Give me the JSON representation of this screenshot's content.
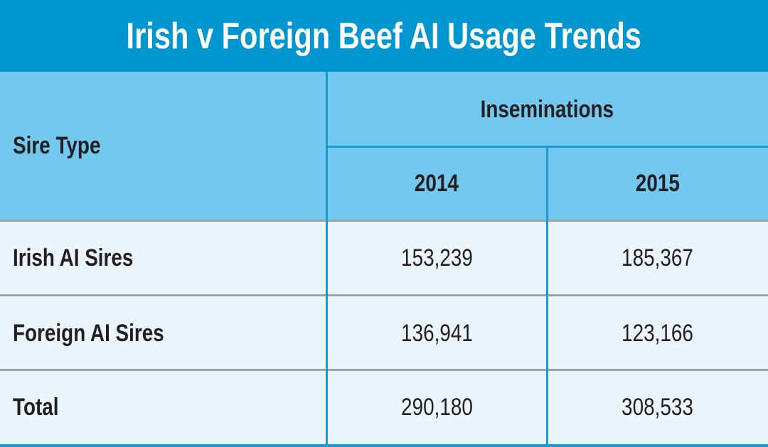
{
  "title": "Irish v Foreign Beef AI Usage Trends",
  "table": {
    "header": {
      "row_label": "Sire Type",
      "group": "Inseminations",
      "columns": [
        "2014",
        "2015"
      ]
    },
    "rows": [
      [
        "Irish AI Sires",
        "153,239",
        "185,367"
      ],
      [
        "Foreign AI Sires",
        "136,941",
        "123,166"
      ],
      [
        "Total",
        "290,180",
        "308,533"
      ]
    ]
  }
}
